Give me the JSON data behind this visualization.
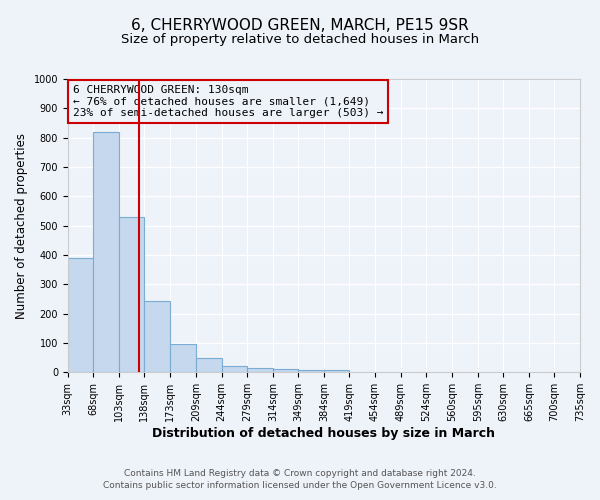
{
  "title": "6, CHERRYWOOD GREEN, MARCH, PE15 9SR",
  "subtitle": "Size of property relative to detached houses in March",
  "xlabel": "Distribution of detached houses by size in March",
  "ylabel": "Number of detached properties",
  "bin_edges": [
    33,
    68,
    103,
    138,
    173,
    209,
    244,
    279,
    314,
    349,
    384,
    419,
    454,
    489,
    524,
    560,
    595,
    630,
    665,
    700,
    735
  ],
  "bar_heights": [
    390,
    820,
    530,
    243,
    95,
    50,
    20,
    15,
    10,
    8,
    8,
    0,
    0,
    0,
    0,
    0,
    0,
    0,
    0,
    0
  ],
  "bar_color": "#c5d8ee",
  "bar_edge_color": "#7aadd4",
  "vline_x": 130,
  "vline_color": "#cc0000",
  "annotation_line1": "6 CHERRYWOOD GREEN: 130sqm",
  "annotation_line2": "← 76% of detached houses are smaller (1,649)",
  "annotation_line3": "23% of semi-detached houses are larger (503) →",
  "annotation_box_color": "#cc0000",
  "ylim": [
    0,
    1000
  ],
  "yticks": [
    0,
    100,
    200,
    300,
    400,
    500,
    600,
    700,
    800,
    900,
    1000
  ],
  "footer1": "Contains HM Land Registry data © Crown copyright and database right 2024.",
  "footer2": "Contains public sector information licensed under the Open Government Licence v3.0.",
  "bg_color": "#eef2f9",
  "plot_bg_color": "#eef2f9",
  "grid_color": "#ffffff",
  "title_fontsize": 11,
  "subtitle_fontsize": 9.5,
  "xlabel_fontsize": 9,
  "ylabel_fontsize": 8.5,
  "tick_fontsize": 7,
  "footer_fontsize": 6.5
}
